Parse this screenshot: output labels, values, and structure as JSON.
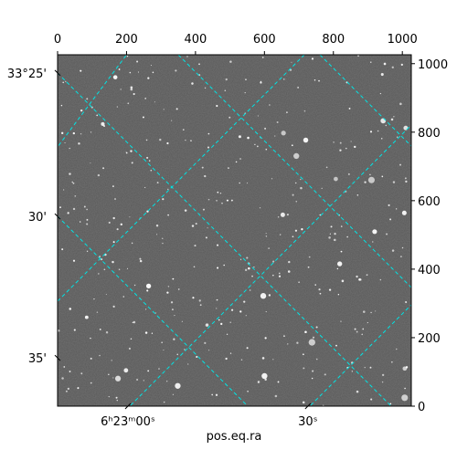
{
  "chart_data": {
    "type": "image",
    "xlabel": "pos.eq.ra",
    "xlim": [
      0,
      1026
    ],
    "ylim": [
      0,
      1026
    ],
    "xticks": [
      0,
      200,
      400,
      600,
      800,
      1000
    ],
    "yticks": [
      0,
      200,
      400,
      600,
      800,
      1000
    ],
    "left_ticks": [
      {
        "value": 973,
        "label": "33°25'"
      },
      {
        "value": 554,
        "label": "30'"
      },
      {
        "value": 141,
        "label": "35'"
      }
    ],
    "bottom_ticks": [
      {
        "value": 204,
        "label": "6ʰ23ᵐ00ˢ"
      },
      {
        "value": 726,
        "label": "30ˢ"
      }
    ],
    "grid": true,
    "grid_color": "#00e5e5"
  }
}
